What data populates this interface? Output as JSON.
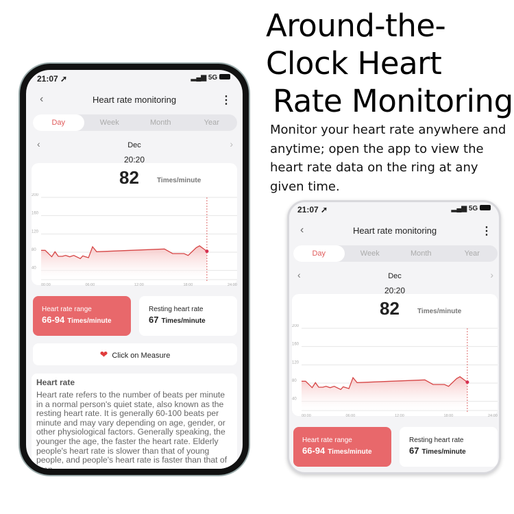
{
  "headline": {
    "lines": [
      "Around-the-",
      "Clock Heart",
      "Rate Monitoring"
    ],
    "subtitle": "Monitor your heart rate anywhere and anytime; open the app to view the heart rate data on the ring at any given time."
  },
  "app": {
    "status": {
      "time": "21:07",
      "network": "5G",
      "icons": [
        "location-arrow-icon",
        "signal-icon",
        "battery-icon"
      ]
    },
    "header": {
      "title": "Heart rate monitoring",
      "back_icon": "chevron-left-icon",
      "more_icon": "more-vertical-icon"
    },
    "tabs": [
      {
        "label": "Day",
        "active": true
      },
      {
        "label": "Week"
      },
      {
        "label": "Month"
      },
      {
        "label": "Year"
      }
    ],
    "period": "Dec",
    "selected_time": "20:20",
    "current_value": "82",
    "unit": "Times/minute",
    "range": {
      "label": "Heart rate range",
      "value": "66-94",
      "unit": "Times/minute"
    },
    "resting": {
      "label": "Resting heart rate",
      "value": "67",
      "unit": "Times/minute"
    },
    "measure_label": "Click on Measure",
    "info": {
      "title": "Heart rate",
      "body": "Heart rate refers to the number of beats per minute in a normal person's quiet state, also known as the resting heart rate. It is generally 60-100 beats per minute and may vary depending on age, gender, or other physiological factors. Generally speaking, the younger the age, the faster the heart rate. Elderly people's heart rate is slower than that of young people, and people's heart rate is faster than that of men."
    },
    "colors": {
      "accent": "#e8686b",
      "line": "#d64545",
      "fill": "#f6c4c4"
    }
  },
  "chart_data": {
    "type": "area",
    "x_ticks": [
      "00:00",
      "06:00",
      "12:00",
      "18:00",
      "24:00"
    ],
    "y_ticks": [
      200,
      160,
      120,
      80,
      40
    ],
    "xlim": [
      0,
      24
    ],
    "ylim": [
      20,
      200
    ],
    "grid": true,
    "x": [
      0,
      0.5,
      1.3,
      1.7,
      2.1,
      2.6,
      3,
      3.5,
      4,
      4.8,
      5.1,
      5.8,
      6.3,
      6.8,
      15.1,
      16.1,
      17.5,
      18,
      19,
      19.4,
      20,
      20.3
    ],
    "y": [
      84,
      84,
      70,
      81,
      71,
      71,
      73,
      70,
      73,
      66,
      72,
      68,
      92,
      81,
      87,
      77,
      77,
      73,
      90,
      94,
      86,
      82
    ],
    "selected_x": 20.3
  }
}
